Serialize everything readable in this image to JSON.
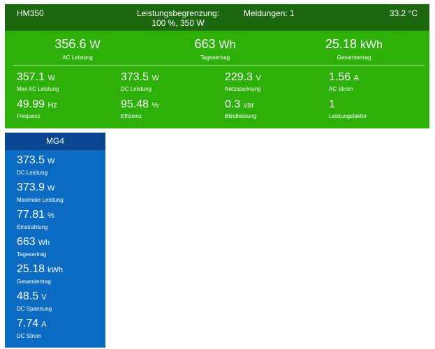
{
  "inverter": {
    "name": "HM350",
    "limit_label": "Leistungsbegrenzung:",
    "limit_value": "100 %, 350 W",
    "messages": "Meldungen: 1",
    "temperature": "33.2 °C",
    "main": [
      {
        "value": "356.6",
        "unit": "W",
        "label": "AC Leistung"
      },
      {
        "value": "663",
        "unit": "Wh",
        "label": "Tagesertrag"
      },
      {
        "value": "25.18",
        "unit": "kWh",
        "label": "Gesamtertrag"
      }
    ],
    "stats": [
      {
        "value": "357.1",
        "unit": "W",
        "label": "Max AC Leistung"
      },
      {
        "value": "373.5",
        "unit": "W",
        "label": "DC Leistung"
      },
      {
        "value": "229.3",
        "unit": "V",
        "label": "Netzspannung"
      },
      {
        "value": "1.56",
        "unit": "A",
        "label": "AC Strom"
      },
      {
        "value": "49.99",
        "unit": "Hz",
        "label": "Frequenz"
      },
      {
        "value": "95.48",
        "unit": "%",
        "label": "Effizienz"
      },
      {
        "value": "0.3",
        "unit": "var",
        "label": "Blindleistung"
      },
      {
        "value": "1",
        "unit": "",
        "label": "Leistungsfaktor"
      }
    ]
  },
  "string": {
    "name": "MG4",
    "stats": [
      {
        "value": "373.5",
        "unit": "W",
        "label": "DC Leistung"
      },
      {
        "value": "373.9",
        "unit": "W",
        "label": "Maximale Leistung"
      },
      {
        "value": "77.81",
        "unit": "%",
        "label": "Einstrahlung"
      },
      {
        "value": "663",
        "unit": "Wh",
        "label": "Tagesertrag"
      },
      {
        "value": "25.18",
        "unit": "kWh",
        "label": "Gesamtertrag"
      },
      {
        "value": "48.5",
        "unit": "V",
        "label": "DC Spannung"
      },
      {
        "value": "7.74",
        "unit": "A",
        "label": "DC Strom"
      }
    ]
  },
  "colors": {
    "inverter_header": "#1d6710",
    "inverter_body": "#2eb00a",
    "string_header": "#0a4591",
    "string_body": "#0b6bc2"
  }
}
